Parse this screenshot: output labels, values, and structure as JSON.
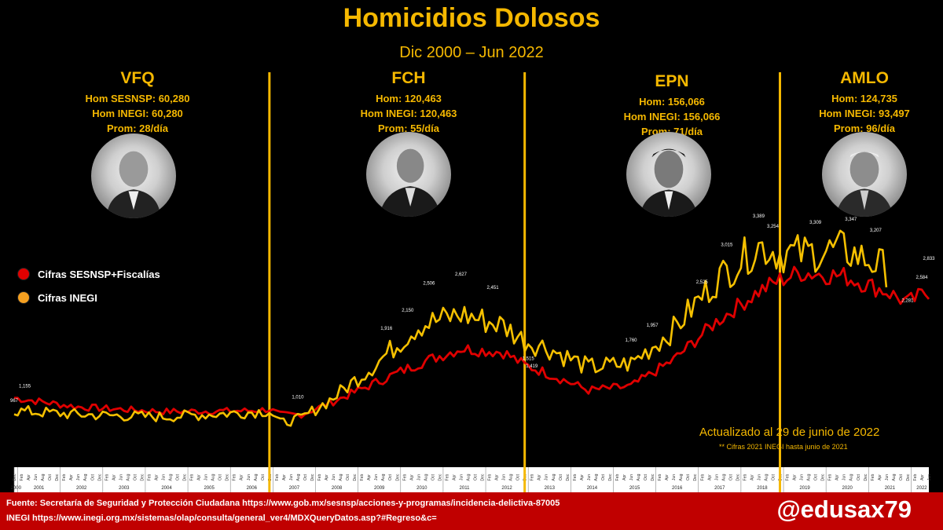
{
  "title": "Homicidios Dolosos",
  "subtitle": "Dic 2000 – Jun 2022",
  "panels": [
    {
      "name": "VFQ",
      "line1": "Hom SESNSP: 60,280",
      "line2": "Hom INEGI: 60,280",
      "line3": "Prom: 28/día"
    },
    {
      "name": "FCH",
      "line1": "Hom: 120,463",
      "line2": "Hom INEGI: 120,463",
      "line3": "Prom: 55/día"
    },
    {
      "name": "EPN",
      "line1": "Hom: 156,066",
      "line2": "Hom INEGI: 156,066",
      "line3": "Prom: 71/día"
    },
    {
      "name": "AMLO",
      "line1": "Hom:  124,735",
      "line2": "Hom INEGI: 93,497",
      "line3": "Prom: 96/día"
    }
  ],
  "legend": [
    {
      "label": "Cifras SESNSP+Fiscalías",
      "color": "#e00000"
    },
    {
      "label": "Cifras INEGI",
      "color": "#f5a020"
    }
  ],
  "updated": "Actualizado al 29 de junio de 2022",
  "note": "** Cifras 2021 INEGI hasta junio de 2021",
  "footer": {
    "line1": "Fuente: Secretaría de Seguridad y Protección Ciudadana https://www.gob.mx/sesnsp/acciones-y-programas/incidencia-delictiva-87005",
    "line2": "INEGI https://www.inegi.org.mx/sistemas/olap/consulta/general_ver4/MDXQueryDatos.asp?#Regreso&c="
  },
  "handle": "@edusax79",
  "colors": {
    "accent": "#f5b800",
    "sesnsp": "#e00000",
    "inegi": "#f5c000",
    "footer": "#c00000"
  },
  "chart_data": {
    "type": "line",
    "x_start": "2000-12",
    "x_end": "2022-06",
    "x_unit": "month",
    "ylim": [
      500,
      3700
    ],
    "years": [
      "2000",
      "2001",
      "2002",
      "2003",
      "2004",
      "2005",
      "2006",
      "2007",
      "2008",
      "2009",
      "2010",
      "2011",
      "2012",
      "2013",
      "2014",
      "2015",
      "2016",
      "2017",
      "2018",
      "2019",
      "2020",
      "2021",
      "2022"
    ],
    "month_ticks": [
      "Feb",
      "Apr",
      "Jun",
      "Aug",
      "Oct",
      "Dec"
    ],
    "period_boundaries": [
      "2006-12",
      "2012-12",
      "2018-12"
    ],
    "series": [
      {
        "name": "Cifras SESNSP+Fiscalías",
        "color": "#e00000",
        "anchors": [
          [
            "2000-12",
            1050
          ],
          [
            "2002-06",
            930
          ],
          [
            "2004-06",
            870
          ],
          [
            "2006-06",
            880
          ],
          [
            "2006-12",
            900
          ],
          [
            "2007-03",
            830
          ],
          [
            "2007-09",
            830
          ],
          [
            "2008-06",
            1000
          ],
          [
            "2009-06",
            1250
          ],
          [
            "2010-06",
            1500
          ],
          [
            "2011-06",
            1700
          ],
          [
            "2012-06",
            1650
          ],
          [
            "2012-12",
            1480
          ],
          [
            "2013-06",
            1380
          ],
          [
            "2014-06",
            1150
          ],
          [
            "2015-06",
            1200
          ],
          [
            "2016-06",
            1550
          ],
          [
            "2017-06",
            2050
          ],
          [
            "2018-06",
            2450
          ],
          [
            "2018-12",
            2600
          ],
          [
            "2019-06",
            2700
          ],
          [
            "2020-06",
            2650
          ],
          [
            "2021-06",
            2450
          ],
          [
            "2021-12",
            2300
          ],
          [
            "2022-06",
            2450
          ]
        ]
      },
      {
        "name": "Cifras INEGI",
        "color": "#f5c000",
        "anchors": [
          [
            "2000-12",
            880
          ],
          [
            "2002-06",
            830
          ],
          [
            "2004-06",
            800
          ],
          [
            "2006-06",
            860
          ],
          [
            "2006-12",
            880
          ],
          [
            "2007-03",
            720
          ],
          [
            "2007-09",
            780
          ],
          [
            "2008-06",
            1050
          ],
          [
            "2009-06",
            1500
          ],
          [
            "2010-06",
            2000
          ],
          [
            "2011-06",
            2150
          ],
          [
            "2012-06",
            2000
          ],
          [
            "2012-12",
            1800
          ],
          [
            "2013-06",
            1720
          ],
          [
            "2014-06",
            1450
          ],
          [
            "2015-06",
            1500
          ],
          [
            "2016-06",
            1950
          ],
          [
            "2017-06",
            2600
          ],
          [
            "2018-06",
            3050
          ],
          [
            "2018-12",
            2950
          ],
          [
            "2019-06",
            2950
          ],
          [
            "2020-06",
            3000
          ],
          [
            "2021-06",
            2750
          ]
        ]
      }
    ],
    "value_labels": [
      {
        "date": "2001-03",
        "text": "1,155"
      },
      {
        "date": "2000-12",
        "text": "967"
      },
      {
        "date": "2007-08",
        "text": "1,010"
      },
      {
        "date": "2009-09",
        "text": "1,916"
      },
      {
        "date": "2010-03",
        "text": "2,150"
      },
      {
        "date": "2010-09",
        "text": "2,506"
      },
      {
        "date": "2011-06",
        "text": "2,627"
      },
      {
        "date": "2012-03",
        "text": "2,451"
      },
      {
        "date": "2013-01",
        "text": "1,515"
      },
      {
        "date": "2013-02",
        "text": "1,419"
      },
      {
        "date": "2015-06",
        "text": "1,760"
      },
      {
        "date": "2015-12",
        "text": "1,957"
      },
      {
        "date": "2017-02",
        "text": "2,525"
      },
      {
        "date": "2017-09",
        "text": "3,015"
      },
      {
        "date": "2018-06",
        "text": "3,389"
      },
      {
        "date": "2018-10",
        "text": "3,254"
      },
      {
        "date": "2019-10",
        "text": "3,309"
      },
      {
        "date": "2020-08",
        "text": "3,347"
      },
      {
        "date": "2021-03",
        "text": "3,207"
      },
      {
        "date": "2022-06",
        "text": "2,833"
      },
      {
        "date": "2022-04",
        "text": "2,584"
      },
      {
        "date": "2021-12",
        "text": "2,281"
      }
    ]
  }
}
